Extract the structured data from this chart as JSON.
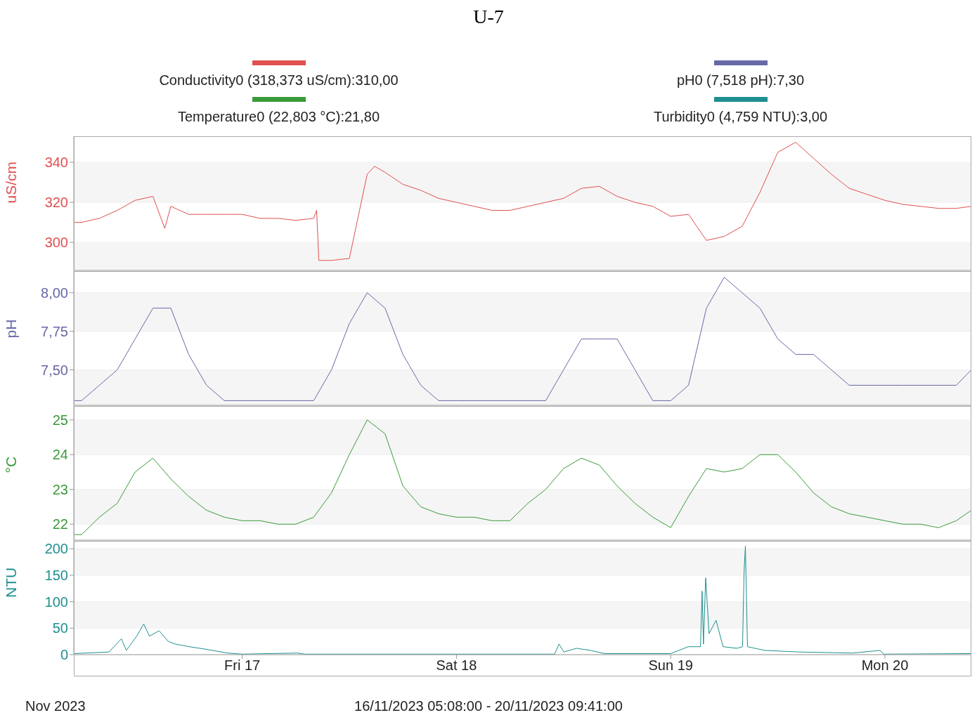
{
  "chart_data": [
    {
      "type": "line",
      "title": "U-7",
      "ylabel": "uS/cm",
      "legend": "top",
      "marker": "none",
      "grid": "y",
      "tick_labels": "y",
      "xlim": [
        "2023-11-16T05:08",
        "2023-11-20T09:41"
      ],
      "ylim": [
        286,
        353
      ],
      "yticks": [
        300,
        320,
        340
      ],
      "x": [
        "2023-11-16T05:08",
        "2023-11-16T06:00",
        "2023-11-16T08:00",
        "2023-11-16T10:00",
        "2023-11-16T12:00",
        "2023-11-16T14:00",
        "2023-11-16T15:19",
        "2023-11-16T16:00",
        "2023-11-16T18:00",
        "2023-11-16T20:00",
        "2023-11-16T22:00",
        "2023-11-17T00:00",
        "2023-11-17T02:00",
        "2023-11-17T04:00",
        "2023-11-17T06:00",
        "2023-11-17T08:00",
        "2023-11-17T08:20",
        "2023-11-17T08:35",
        "2023-11-17T10:00",
        "2023-11-17T12:00",
        "2023-11-17T14:00",
        "2023-11-17T14:50",
        "2023-11-17T16:00",
        "2023-11-17T18:00",
        "2023-11-17T20:00",
        "2023-11-17T22:00",
        "2023-11-18T00:00",
        "2023-11-18T02:00",
        "2023-11-18T04:00",
        "2023-11-18T06:00",
        "2023-11-18T08:00",
        "2023-11-18T10:00",
        "2023-11-18T12:00",
        "2023-11-18T14:00",
        "2023-11-18T16:00",
        "2023-11-18T18:00",
        "2023-11-18T20:00",
        "2023-11-18T22:00",
        "2023-11-19T00:00",
        "2023-11-19T02:00",
        "2023-11-19T04:00",
        "2023-11-19T06:00",
        "2023-11-19T08:00",
        "2023-11-19T10:00",
        "2023-11-19T12:00",
        "2023-11-19T14:00",
        "2023-11-19T16:00",
        "2023-11-19T18:00",
        "2023-11-19T20:00",
        "2023-11-19T22:00",
        "2023-11-20T00:00",
        "2023-11-20T02:00",
        "2023-11-20T04:00",
        "2023-11-20T06:00",
        "2023-11-20T08:00",
        "2023-11-20T09:41"
      ],
      "series": [
        {
          "name": "Conductivity0 (318,373 uS/cm):310,00",
          "color": "#e05050",
          "values": [
            310,
            310,
            312,
            316,
            321,
            323,
            307,
            318,
            314,
            314,
            314,
            314,
            312,
            312,
            311,
            312,
            316,
            291,
            291,
            292,
            334,
            338,
            335,
            329,
            326,
            322,
            320,
            318,
            316,
            316,
            318,
            320,
            322,
            327,
            328,
            323,
            320,
            318,
            313,
            314,
            301,
            303,
            308,
            325,
            345,
            350,
            342,
            334,
            327,
            324,
            321,
            319,
            318,
            317,
            317,
            318
          ]
        }
      ]
    },
    {
      "type": "line",
      "ylabel": "pH",
      "legend": "top",
      "marker": "none",
      "grid": "y",
      "tick_labels": "y",
      "xlim": [
        "2023-11-16T05:08",
        "2023-11-20T09:41"
      ],
      "ylim": [
        7.27,
        8.14
      ],
      "yticks": [
        {
          "value": 7.5,
          "label": "7,50"
        },
        {
          "value": 7.75,
          "label": "7,75"
        },
        {
          "value": 8,
          "label": "8,00"
        }
      ],
      "x": [
        "2023-11-16T05:08",
        "2023-11-16T06:00",
        "2023-11-16T08:00",
        "2023-11-16T10:00",
        "2023-11-16T12:00",
        "2023-11-16T14:00",
        "2023-11-16T16:00",
        "2023-11-16T18:00",
        "2023-11-16T20:00",
        "2023-11-16T22:00",
        "2023-11-17T00:00",
        "2023-11-17T02:00",
        "2023-11-17T04:00",
        "2023-11-17T06:00",
        "2023-11-17T08:00",
        "2023-11-17T10:00",
        "2023-11-17T12:00",
        "2023-11-17T14:00",
        "2023-11-17T16:00",
        "2023-11-17T18:00",
        "2023-11-17T20:00",
        "2023-11-17T22:00",
        "2023-11-18T00:00",
        "2023-11-18T02:00",
        "2023-11-18T04:00",
        "2023-11-18T06:00",
        "2023-11-18T08:00",
        "2023-11-18T10:00",
        "2023-11-18T12:00",
        "2023-11-18T14:00",
        "2023-11-18T16:00",
        "2023-11-18T18:00",
        "2023-11-18T20:00",
        "2023-11-18T22:00",
        "2023-11-19T00:00",
        "2023-11-19T02:00",
        "2023-11-19T04:00",
        "2023-11-19T06:00",
        "2023-11-19T08:00",
        "2023-11-19T10:00",
        "2023-11-19T12:00",
        "2023-11-19T14:00",
        "2023-11-19T16:00",
        "2023-11-19T18:00",
        "2023-11-19T20:00",
        "2023-11-19T22:00",
        "2023-11-20T00:00",
        "2023-11-20T02:00",
        "2023-11-20T04:00",
        "2023-11-20T06:00",
        "2023-11-20T08:00",
        "2023-11-20T09:41"
      ],
      "series": [
        {
          "name": "pH0 (7,518 pH):7,30",
          "color": "#6868a8",
          "values": [
            7.3,
            7.3,
            7.4,
            7.5,
            7.7,
            7.9,
            7.9,
            7.6,
            7.4,
            7.3,
            7.3,
            7.3,
            7.3,
            7.3,
            7.3,
            7.5,
            7.8,
            8.0,
            7.9,
            7.6,
            7.4,
            7.3,
            7.3,
            7.3,
            7.3,
            7.3,
            7.3,
            7.3,
            7.5,
            7.7,
            7.7,
            7.7,
            7.5,
            7.3,
            7.3,
            7.4,
            7.9,
            8.1,
            8.0,
            7.9,
            7.7,
            7.6,
            7.6,
            7.5,
            7.4,
            7.4,
            7.4,
            7.4,
            7.4,
            7.4,
            7.4,
            7.5
          ]
        }
      ]
    },
    {
      "type": "line",
      "ylabel": "°C",
      "legend": "top",
      "marker": "none",
      "grid": "y",
      "tick_labels": "y",
      "xlim": [
        "2023-11-16T05:08",
        "2023-11-20T09:41"
      ],
      "ylim": [
        21.54,
        25.4
      ],
      "yticks": [
        22,
        23,
        24,
        25
      ],
      "x": [
        "2023-11-16T05:08",
        "2023-11-16T06:00",
        "2023-11-16T08:00",
        "2023-11-16T10:00",
        "2023-11-16T12:00",
        "2023-11-16T14:00",
        "2023-11-16T16:00",
        "2023-11-16T18:00",
        "2023-11-16T20:00",
        "2023-11-16T22:00",
        "2023-11-17T00:00",
        "2023-11-17T02:00",
        "2023-11-17T04:00",
        "2023-11-17T06:00",
        "2023-11-17T08:00",
        "2023-11-17T10:00",
        "2023-11-17T12:00",
        "2023-11-17T14:00",
        "2023-11-17T16:00",
        "2023-11-17T18:00",
        "2023-11-17T20:00",
        "2023-11-17T22:00",
        "2023-11-18T00:00",
        "2023-11-18T02:00",
        "2023-11-18T04:00",
        "2023-11-18T06:00",
        "2023-11-18T08:00",
        "2023-11-18T10:00",
        "2023-11-18T12:00",
        "2023-11-18T14:00",
        "2023-11-18T16:00",
        "2023-11-18T18:00",
        "2023-11-18T20:00",
        "2023-11-18T22:00",
        "2023-11-19T00:00",
        "2023-11-19T02:00",
        "2023-11-19T04:00",
        "2023-11-19T06:00",
        "2023-11-19T08:00",
        "2023-11-19T10:00",
        "2023-11-19T12:00",
        "2023-11-19T14:00",
        "2023-11-19T16:00",
        "2023-11-19T18:00",
        "2023-11-19T20:00",
        "2023-11-19T22:00",
        "2023-11-20T00:00",
        "2023-11-20T02:00",
        "2023-11-20T04:00",
        "2023-11-20T06:00",
        "2023-11-20T08:00",
        "2023-11-20T09:41"
      ],
      "series": [
        {
          "name": "Temperature0 (22,803 °C):21,80",
          "color": "#3a9a3a",
          "values": [
            21.7,
            21.7,
            22.2,
            22.6,
            23.5,
            23.9,
            23.3,
            22.8,
            22.4,
            22.2,
            22.1,
            22.1,
            22.0,
            22.0,
            22.2,
            22.9,
            24.0,
            25.0,
            24.6,
            23.1,
            22.5,
            22.3,
            22.2,
            22.2,
            22.1,
            22.1,
            22.6,
            23.0,
            23.6,
            23.9,
            23.7,
            23.1,
            22.6,
            22.2,
            21.9,
            22.8,
            23.6,
            23.5,
            23.6,
            24.0,
            24.0,
            23.5,
            22.9,
            22.5,
            22.3,
            22.2,
            22.1,
            22.0,
            22.0,
            21.9,
            22.1,
            22.4
          ]
        }
      ]
    },
    {
      "type": "line",
      "ylabel": "NTU",
      "xlabel": "16/11/2023 05:08:00 - 20/11/2023 09:41:00",
      "annotations": [
        "Nov 2023"
      ],
      "legend": "top",
      "marker": "none",
      "grid": "y",
      "xlim": [
        "2023-11-16T05:08",
        "2023-11-20T09:41"
      ],
      "xticks": [
        {
          "value": "2023-11-17",
          "label": "Fri 17"
        },
        {
          "value": "2023-11-18",
          "label": "Sat 18"
        },
        {
          "value": "2023-11-19",
          "label": "Sun 19"
        },
        {
          "value": "2023-11-20",
          "label": "Mon 20"
        }
      ],
      "ylim": [
        0,
        215
      ],
      "yticks": [
        0,
        50,
        100,
        150,
        200
      ],
      "x": [
        "2023-11-16T05:08",
        "2023-11-16T09:04",
        "2023-11-16T10:28",
        "2023-11-16T11:01",
        "2023-11-16T12:11",
        "2023-11-16T12:58",
        "2023-11-16T13:36",
        "2023-11-16T14:42",
        "2023-11-16T15:43",
        "2023-11-16T16:30",
        "2023-11-16T18:04",
        "2023-11-16T20:01",
        "2023-11-16T22:22",
        "2023-11-17T00:00",
        "2023-11-17T06:11",
        "2023-11-17T07:00",
        "2023-11-18T11:00",
        "2023-11-18T11:29",
        "2023-11-18T12:02",
        "2023-11-18T13:27",
        "2023-11-18T15:01",
        "2023-11-18T16:35",
        "2023-11-19T00:00",
        "2023-11-19T01:58",
        "2023-11-19T03:20",
        "2023-11-19T03:31",
        "2023-11-19T03:40",
        "2023-11-19T03:55",
        "2023-11-19T04:18",
        "2023-11-19T05:05",
        "2023-11-19T05:52",
        "2023-11-19T07:26",
        "2023-11-19T08:03",
        "2023-11-19T08:13",
        "2023-11-19T08:22",
        "2023-11-19T08:36",
        "2023-11-19T10:33",
        "2023-11-19T14:28",
        "2023-11-19T20:20",
        "2023-11-19T23:28",
        "2023-11-19T23:51",
        "2023-11-20T09:41"
      ],
      "series": [
        {
          "name": "Turbidity0 (4,759 NTU):3,00",
          "color": "#1f9090",
          "values": [
            2,
            5,
            30,
            8,
            35,
            58,
            35,
            45,
            25,
            20,
            15,
            10,
            3,
            1,
            3,
            1,
            1,
            20,
            5,
            12,
            8,
            2,
            2,
            15,
            15,
            120,
            20,
            145,
            40,
            65,
            15,
            12,
            15,
            155,
            205,
            15,
            8,
            5,
            3,
            8,
            1,
            2
          ]
        }
      ]
    }
  ]
}
